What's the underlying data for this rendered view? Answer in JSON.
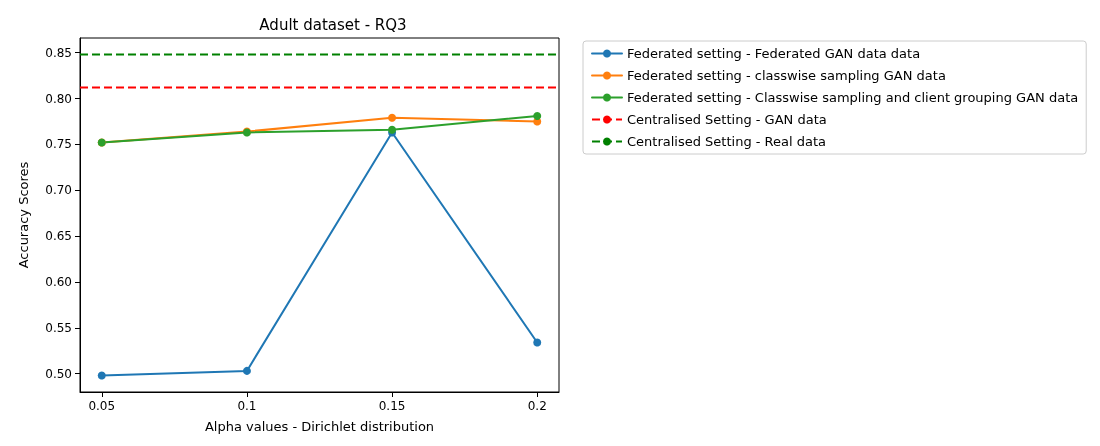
{
  "chart_data": {
    "type": "line",
    "title": "Adult dataset - RQ3",
    "xlabel": "Alpha values - Dirichlet distribution",
    "ylabel": "Accuracy Scores",
    "x": [
      0.05,
      0.1,
      0.15,
      0.2
    ],
    "series": [
      {
        "name": "Federated setting - Federated GAN data data",
        "color": "#1f77b4",
        "values": [
          0.498,
          0.503,
          0.763,
          0.534
        ]
      },
      {
        "name": "Federated setting - classwise sampling GAN data",
        "color": "#ff7f0e",
        "values": [
          0.752,
          0.764,
          0.779,
          0.775
        ]
      },
      {
        "name": "Federated setting - Classwise sampling and client grouping GAN data",
        "color": "#2ca02c",
        "values": [
          0.752,
          0.763,
          0.766,
          0.781
        ]
      }
    ],
    "ref_lines": [
      {
        "axis": "y",
        "value": 0.812,
        "label": "Centralised Setting - GAN data",
        "color": "#ff0000",
        "line_style": "dashed"
      },
      {
        "axis": "y",
        "value": 0.848,
        "label": "Centralised Setting - Real data",
        "color": "#008000",
        "line_style": "dashed"
      }
    ],
    "xlim": [
      0.0425,
      0.2075
    ],
    "xticks": [
      0.05,
      0.1,
      0.15,
      0.2
    ],
    "ylim": [
      0.48,
      0.866
    ],
    "yticks": [
      {
        "value": 0.5,
        "label": "0.50"
      },
      {
        "value": 0.55,
        "label": "0.55"
      },
      {
        "value": 0.6,
        "label": "0.60"
      },
      {
        "value": 0.65,
        "label": "0.65"
      },
      {
        "value": 0.7,
        "label": "0.70"
      },
      {
        "value": 0.75,
        "label": "0.75"
      },
      {
        "value": 0.8,
        "label": "0.80"
      },
      {
        "value": 0.85,
        "label": "0.85"
      }
    ],
    "grid": false,
    "legend": "top right",
    "marker": "circle",
    "line_style": "solid"
  }
}
